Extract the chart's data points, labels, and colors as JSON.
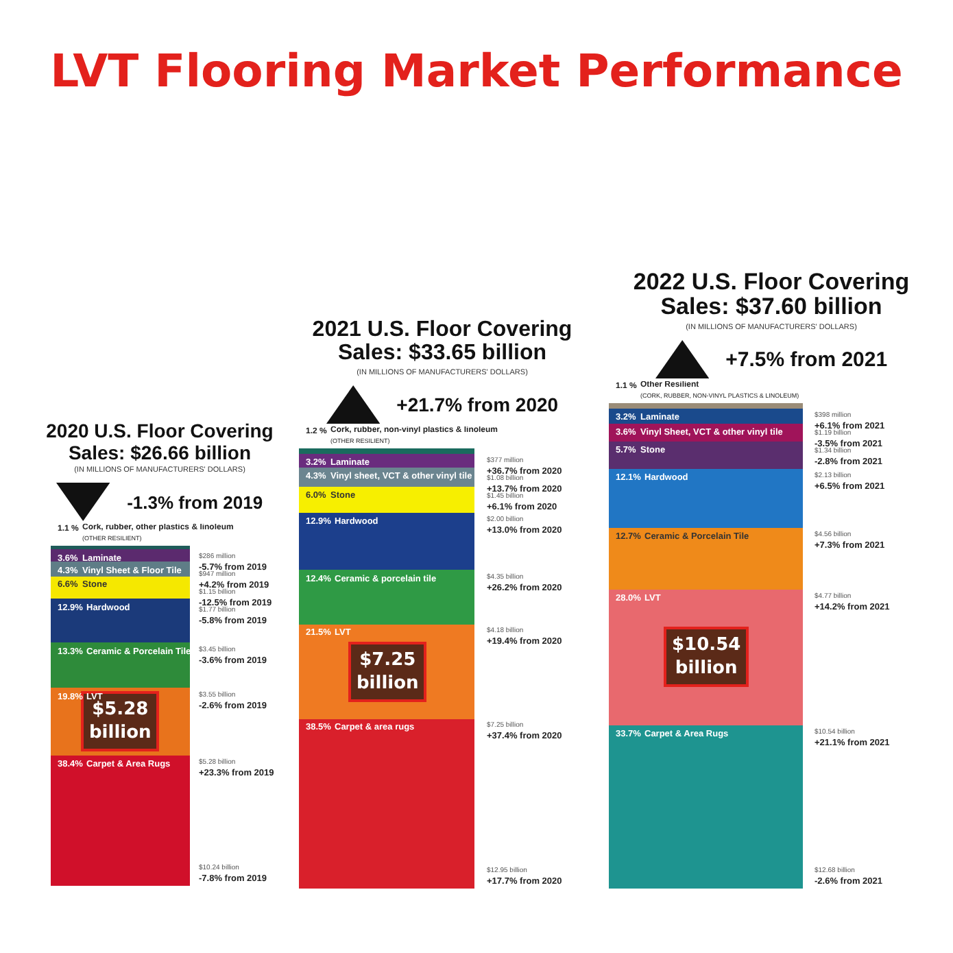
{
  "chart_data": [
    {
      "type": "bar",
      "stacked": true,
      "title": "2020 U.S. Floor Covering\nSales: $26.66 billion",
      "subtitle": "(IN MILLIONS OF MANUFACTURERS' DOLLARS)",
      "categories": [
        null
      ],
      "tick_labels": false,
      "series": [
        {
          "name": "Carpet & Area Rugs",
          "color": "#d0102a",
          "values": [
            38.4
          ],
          "value_labels": [
            "38.4%"
          ]
        },
        {
          "name": "LVT",
          "color": "#e8731c",
          "values": [
            19.8
          ],
          "value_labels": [
            "19.8%"
          ]
        },
        {
          "name": "Ceramic & Porcelain Tile",
          "color": "#2e8b3a",
          "values": [
            13.3
          ],
          "value_labels": [
            "13.3%"
          ]
        },
        {
          "name": "Hardwood",
          "color": "#1b3a7a",
          "values": [
            12.9
          ],
          "value_labels": [
            "12.9%"
          ]
        },
        {
          "name": "Stone",
          "color": "#f5e800",
          "values": [
            6.6
          ],
          "value_labels": [
            "6.6%"
          ]
        },
        {
          "name": "Vinyl Sheet & Floor Tile",
          "color": "#5f7d87",
          "values": [
            4.3
          ],
          "value_labels": [
            "4.3%"
          ]
        },
        {
          "name": "Laminate",
          "color": "#5b2a6e",
          "values": [
            3.6
          ],
          "value_labels": [
            "3.6%"
          ]
        },
        {
          "name": "Cork, rubber, other plastics & linoleum\n(OTHER RESILIENT)",
          "color": "#1f5c5a",
          "values": [
            1.1
          ],
          "value_labels": [
            "1.1 %"
          ]
        }
      ],
      "annotations": [
        "LVT Flooring Market Performance",
        "-1.3% from 2019",
        "$5.28\nbillion",
        "$286 million\n-5.7% from 2019",
        "$947 million\n+4.2% from 2019",
        "$1.15 billion\n-12.5% from 2019",
        "$1.77 billion\n-5.8% from 2019",
        "$3.45 billion\n-3.6% from 2019",
        "$3.55 billion\n-2.6% from 2019",
        "$5.28 billion\n+23.3% from 2019",
        "$10.24 billion\n-7.8% from 2019"
      ]
    },
    {
      "type": "bar",
      "stacked": true,
      "title": "2021 U.S. Floor Covering\nSales: $33.65 billion",
      "subtitle": "(IN MILLIONS OF MANUFACTURERS' DOLLARS)",
      "categories": [
        null
      ],
      "tick_labels": false,
      "series": [
        {
          "name": "Carpet & area rugs",
          "color": "#d9202b",
          "values": [
            38.5
          ],
          "value_labels": [
            "38.5%"
          ]
        },
        {
          "name": "LVT",
          "color": "#ef7a22",
          "values": [
            21.5
          ],
          "value_labels": [
            "21.5%"
          ]
        },
        {
          "name": "Ceramic & porcelain tile",
          "color": "#2f9a45",
          "values": [
            12.4
          ],
          "value_labels": [
            "12.4%"
          ]
        },
        {
          "name": "Hardwood",
          "color": "#1c3f8c",
          "values": [
            12.9
          ],
          "value_labels": [
            "12.9%"
          ]
        },
        {
          "name": "Stone",
          "color": "#f7ef00",
          "values": [
            6.0
          ],
          "value_labels": [
            "6.0%"
          ]
        },
        {
          "name": "Vinyl sheet, VCT & other vinyl tile",
          "color": "#6b8590",
          "values": [
            4.3
          ],
          "value_labels": [
            "4.3%"
          ]
        },
        {
          "name": "Laminate",
          "color": "#6a2c7e",
          "values": [
            3.2
          ],
          "value_labels": [
            "3.2%"
          ]
        },
        {
          "name": "Cork, rubber, non-vinyl plastics & linoleum\n(OTHER RESILIENT)",
          "color": "#1a6b5e",
          "values": [
            1.2
          ],
          "value_labels": [
            "1.2 %"
          ]
        }
      ],
      "annotations": [
        "+21.7% from 2020",
        "$7.25\nbillion",
        "$377 million\n+36.7% from 2020",
        "$1.08 billion\n+13.7% from 2020",
        "$1.45 billion\n+6.1% from 2020",
        "$2.00 billion\n+13.0% from 2020",
        "$4.35 billion\n+26.2% from 2020",
        "$4.18 billion\n+19.4% from 2020",
        "$7.25 billion\n+37.4% from 2020",
        "$12.95 billion\n+17.7% from 2020"
      ]
    },
    {
      "type": "bar",
      "stacked": true,
      "title": "2022 U.S. Floor Covering\nSales: $37.60 billion",
      "subtitle": "(IN MILLIONS OF MANUFACTURERS' DOLLARS)",
      "categories": [
        null
      ],
      "tick_labels": false,
      "series": [
        {
          "name": "Carpet & Area Rugs",
          "color": "#1e9490",
          "values": [
            33.7
          ],
          "value_labels": [
            "33.7%"
          ]
        },
        {
          "name": "LVT",
          "color": "#e8696e",
          "values": [
            28.0
          ],
          "value_labels": [
            "28.0%"
          ]
        },
        {
          "name": "Ceramic & Porcelain Tile",
          "color": "#ef8a1a",
          "values": [
            12.7
          ],
          "value_labels": [
            "12.7%"
          ]
        },
        {
          "name": "Hardwood",
          "color": "#2176c4",
          "values": [
            12.1
          ],
          "value_labels": [
            "12.1%"
          ]
        },
        {
          "name": "Stone",
          "color": "#5a2e6e",
          "values": [
            5.7
          ],
          "value_labels": [
            "5.7%"
          ]
        },
        {
          "name": "Vinyl Sheet, VCT & other vinyl tile",
          "color": "#a0145a",
          "values": [
            3.6
          ],
          "value_labels": [
            "3.6%"
          ]
        },
        {
          "name": "Laminate",
          "color": "#1a4a8c",
          "values": [
            3.2
          ],
          "value_labels": [
            "3.2%"
          ]
        },
        {
          "name": "Other Resilient\n(CORK, RUBBER, NON-VINYL PLASTICS & LINOLEUM)",
          "color": "#9a8c78",
          "values": [
            1.1
          ],
          "value_labels": [
            "1.1 %"
          ]
        }
      ],
      "annotations": [
        "+7.5% from 2021",
        "$10.54\nbillion",
        "$398 million\n+6.1% from 2021",
        "$1.19 billion\n-3.5% from 2021",
        "$1.34 billion\n-2.8% from 2021",
        "$2.13 billion\n+6.5% from 2021",
        "$4.56 billion\n+7.3% from 2021",
        "$4.77 billion\n+14.2% from 2021",
        "$10.54 billion\n+21.1% from 2021",
        "$12.68 billion\n-2.6% from 2021"
      ]
    }
  ]
}
